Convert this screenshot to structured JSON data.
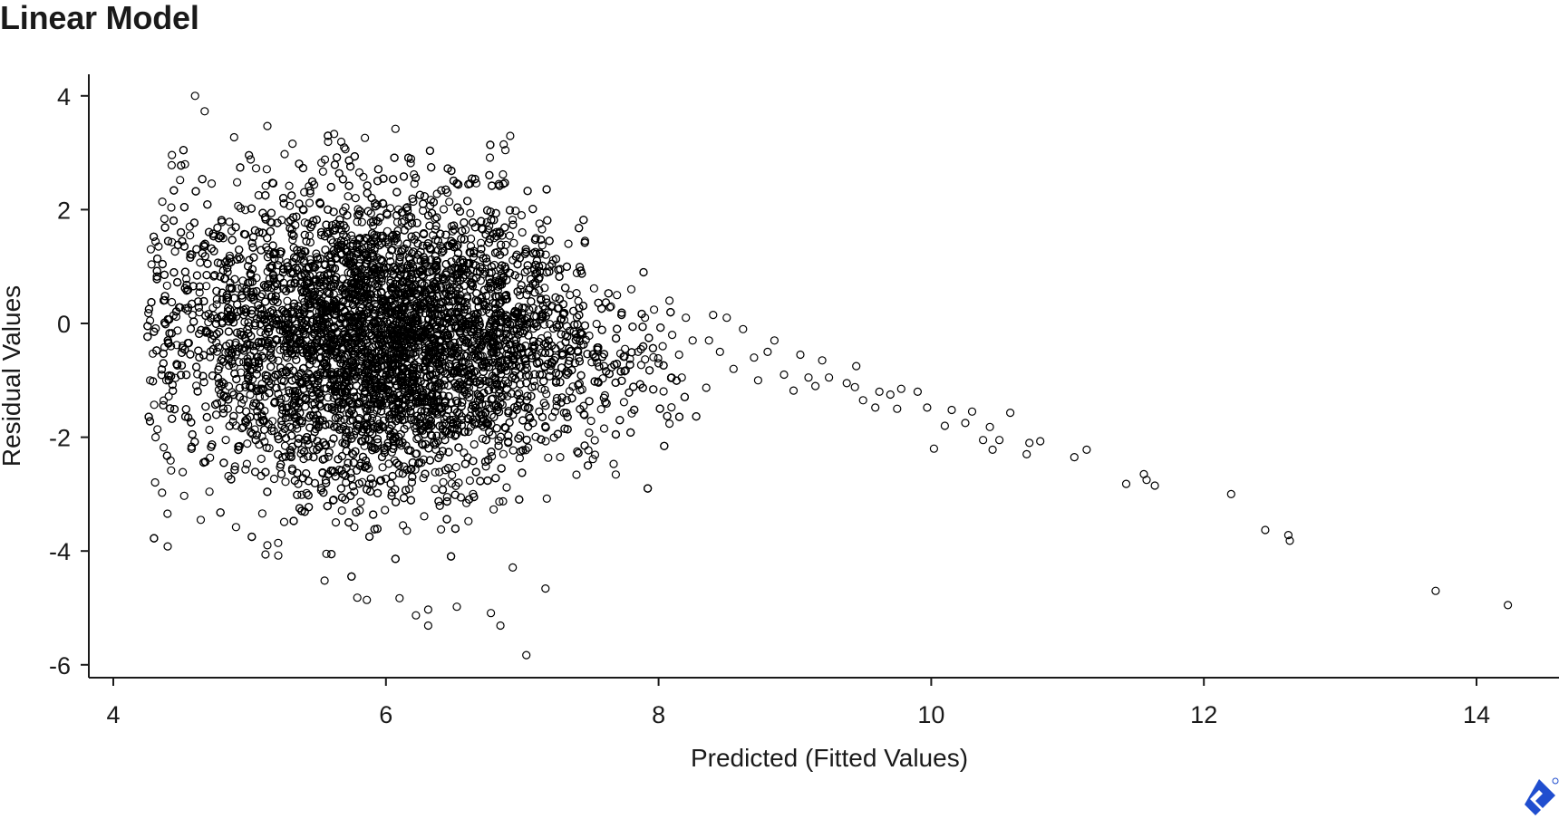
{
  "chart_data": {
    "type": "scatter",
    "title": "Linear Model",
    "xlabel": "Predicted (Fitted Values)",
    "ylabel": "Residual Values",
    "xlim": [
      3.6,
      14.9
    ],
    "ylim": [
      -6.25,
      4.4
    ],
    "xticks": [
      4,
      6,
      8,
      10,
      12,
      14
    ],
    "yticks": [
      4,
      2,
      0,
      -2,
      -4,
      -6
    ],
    "grid": false,
    "legend": "none",
    "marker": "open-circle",
    "marker_color": "#000000",
    "dense_cloud": {
      "approx_point_count": 9000,
      "x_range": [
        4.25,
        8.3
      ],
      "y_range": [
        -5.9,
        4.05
      ],
      "center_x": 6.0,
      "center_y": -0.3
    },
    "points": [
      [
        4.6,
        4.0
      ],
      [
        4.67,
        3.73
      ],
      [
        5.13,
        3.47
      ],
      [
        6.07,
        3.42
      ],
      [
        5.62,
        3.33
      ],
      [
        4.43,
        2.96
      ],
      [
        4.49,
        2.52
      ],
      [
        4.36,
        2.14
      ],
      [
        4.31,
        1.44
      ],
      [
        4.27,
        0.05
      ],
      [
        4.29,
        -0.53
      ],
      [
        4.27,
        -1.0
      ],
      [
        4.3,
        -1.43
      ],
      [
        4.31,
        -2.0
      ],
      [
        4.37,
        -2.18
      ],
      [
        4.42,
        -2.41
      ],
      [
        4.52,
        -3.03
      ],
      [
        4.9,
        -3.58
      ],
      [
        5.13,
        -3.9
      ],
      [
        5.21,
        -4.08
      ],
      [
        5.55,
        -4.52
      ],
      [
        5.79,
        -4.82
      ],
      [
        5.86,
        -4.86
      ],
      [
        6.1,
        -4.83
      ],
      [
        6.22,
        -5.13
      ],
      [
        6.31,
        -5.03
      ],
      [
        6.31,
        -5.31
      ],
      [
        6.52,
        -4.98
      ],
      [
        6.77,
        -5.09
      ],
      [
        6.84,
        -5.31
      ],
      [
        7.03,
        -5.83
      ],
      [
        7.17,
        -4.66
      ],
      [
        7.18,
        -3.08
      ],
      [
        6.93,
        -4.29
      ],
      [
        7.19,
        -2.36
      ],
      [
        7.05,
        -1.63
      ],
      [
        7.14,
        -1.15
      ],
      [
        7.45,
        -1.45
      ],
      [
        7.49,
        -1.92
      ],
      [
        7.67,
        -2.47
      ],
      [
        7.6,
        -0.75
      ],
      [
        7.72,
        -0.53
      ],
      [
        7.46,
        1.45
      ],
      [
        7.2,
        1.0
      ],
      [
        7.0,
        1.6
      ],
      [
        6.86,
        2.45
      ],
      [
        7.02,
        0.9
      ],
      [
        7.35,
        0.5
      ],
      [
        7.65,
        0.3
      ],
      [
        7.8,
        0.6
      ],
      [
        7.85,
        -0.5
      ],
      [
        7.9,
        0.1
      ],
      [
        8.0,
        -0.7
      ],
      [
        8.03,
        -0.4
      ],
      [
        8.08,
        0.4
      ],
      [
        8.1,
        -0.2
      ],
      [
        8.15,
        -0.55
      ],
      [
        8.17,
        -0.95
      ],
      [
        8.2,
        0.1
      ],
      [
        8.25,
        -0.3
      ],
      [
        8.35,
        -1.13
      ],
      [
        8.37,
        -0.3
      ],
      [
        8.4,
        0.15
      ],
      [
        8.45,
        -0.5
      ],
      [
        8.5,
        0.1
      ],
      [
        8.55,
        -0.8
      ],
      [
        8.62,
        -0.1
      ],
      [
        8.7,
        -0.6
      ],
      [
        8.73,
        -1.0
      ],
      [
        8.8,
        -0.5
      ],
      [
        8.85,
        -0.3
      ],
      [
        8.92,
        -0.9
      ],
      [
        8.99,
        -1.18
      ],
      [
        9.04,
        -0.55
      ],
      [
        9.1,
        -0.95
      ],
      [
        9.15,
        -1.1
      ],
      [
        9.2,
        -0.65
      ],
      [
        9.25,
        -0.95
      ],
      [
        9.38,
        -1.05
      ],
      [
        9.44,
        -1.12
      ],
      [
        9.45,
        -0.75
      ],
      [
        9.5,
        -1.35
      ],
      [
        9.59,
        -1.48
      ],
      [
        9.62,
        -1.2
      ],
      [
        9.7,
        -1.25
      ],
      [
        9.75,
        -1.5
      ],
      [
        9.78,
        -1.15
      ],
      [
        9.9,
        -1.2
      ],
      [
        9.97,
        -1.48
      ],
      [
        10.02,
        -2.2
      ],
      [
        10.1,
        -1.8
      ],
      [
        10.15,
        -1.52
      ],
      [
        10.25,
        -1.75
      ],
      [
        10.3,
        -1.55
      ],
      [
        10.38,
        -2.05
      ],
      [
        10.43,
        -1.82
      ],
      [
        10.45,
        -2.22
      ],
      [
        10.5,
        -2.05
      ],
      [
        10.58,
        -1.57
      ],
      [
        10.7,
        -2.3
      ],
      [
        10.72,
        -2.1
      ],
      [
        10.8,
        -2.07
      ],
      [
        11.05,
        -2.35
      ],
      [
        11.14,
        -2.22
      ],
      [
        11.43,
        -2.82
      ],
      [
        11.56,
        -2.65
      ],
      [
        11.58,
        -2.75
      ],
      [
        11.64,
        -2.85
      ],
      [
        12.2,
        -3.0
      ],
      [
        12.45,
        -3.63
      ],
      [
        12.62,
        -3.72
      ],
      [
        12.63,
        -3.82
      ],
      [
        13.7,
        -4.7
      ],
      [
        14.23,
        -4.95
      ]
    ]
  },
  "logo": {
    "name": "brand-logo-icon",
    "color": "#204ecf"
  }
}
